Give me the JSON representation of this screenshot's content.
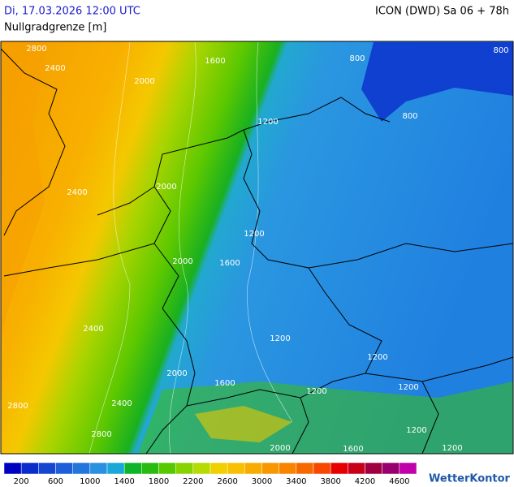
{
  "header": {
    "datetime": "Di, 17.03.2026 12:00 UTC",
    "model": "ICON (DWD) Sa 06 + 78h",
    "parameter": "Nullgradgrenze [m]"
  },
  "map": {
    "contour_labels": [
      2800,
      2400,
      2000,
      1600,
      800,
      800,
      1200,
      800,
      2400,
      2000,
      1200,
      1600,
      2000,
      2400,
      1200,
      1200,
      2000,
      1600,
      1200,
      1200,
      2400,
      2800,
      2800,
      1200,
      1200,
      1600,
      2000
    ]
  },
  "legend": {
    "colors": [
      "#0000c0",
      "#0a2ccc",
      "#1446d2",
      "#1e5ed8",
      "#2276dc",
      "#2a90e0",
      "#1aa8d8",
      "#10b428",
      "#28bc10",
      "#58c800",
      "#88d200",
      "#b4dc00",
      "#f0d000",
      "#f8c000",
      "#f8ac00",
      "#f89800",
      "#f88400",
      "#f86800",
      "#f84800",
      "#e80000",
      "#c80018",
      "#a00040",
      "#980070",
      "#c000a8"
    ],
    "labels": [
      200,
      600,
      1000,
      1400,
      1800,
      2200,
      2600,
      3000,
      3400,
      3800,
      4200,
      4600
    ]
  },
  "brand": "WetterKontor"
}
